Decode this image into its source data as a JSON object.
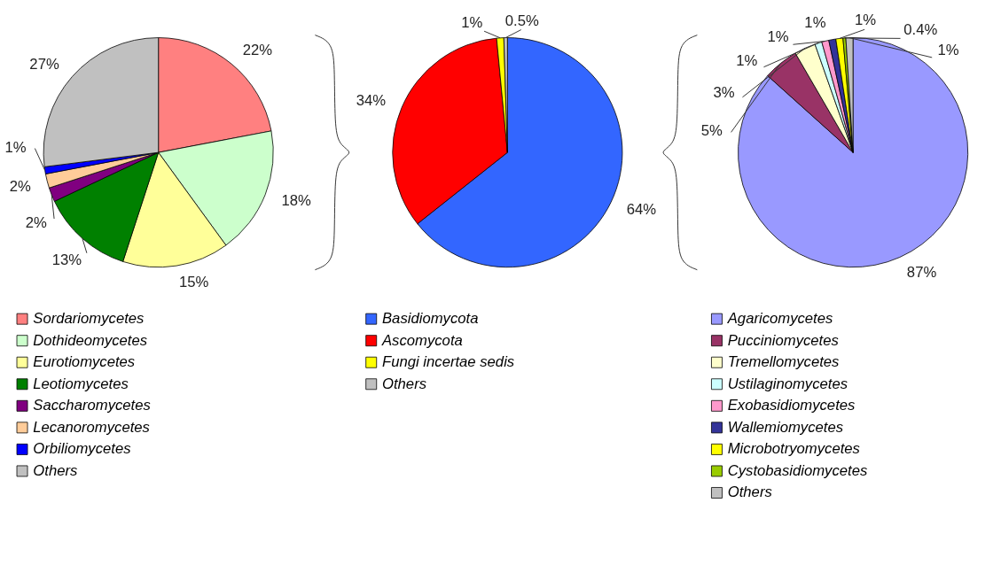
{
  "chart_data": [
    {
      "type": "pie",
      "categories": [
        "Sordariomycetes",
        "Dothideomycetes",
        "Eurotiomycetes",
        "Leotiomycetes",
        "Saccharomycetes",
        "Lecanoromycetes",
        "Orbiliomycetes",
        "Others"
      ],
      "values": [
        22,
        18,
        15,
        13,
        2,
        2,
        1,
        27
      ],
      "value_labels": [
        "22%",
        "18%",
        "15%",
        "13%",
        "2%",
        "2%",
        "1%",
        "27%"
      ],
      "colors": [
        "#ff8080",
        "#ccffcc",
        "#ffff99",
        "#008000",
        "#800080",
        "#ffcc99",
        "#0000ff",
        "#c0c0c0"
      ],
      "legend": "bottom"
    },
    {
      "type": "pie",
      "categories": [
        "Basidiomycota",
        "Ascomycota",
        "Fungi incertae sedis",
        "Others"
      ],
      "values": [
        64,
        34,
        1,
        0.5
      ],
      "value_labels": [
        "64%",
        "34%",
        "1%",
        "0.5%"
      ],
      "colors": [
        "#3366ff",
        "#ff0000",
        "#ffff00",
        "#c0c0c0"
      ],
      "legend": "bottom"
    },
    {
      "type": "pie",
      "categories": [
        "Agaricomycetes",
        "Pucciniomycetes",
        "Tremellomycetes",
        "Ustilaginomycetes",
        "Exobasidiomycetes",
        "Wallemiomycetes",
        "Microbotryomycetes",
        "Cystobasidiomycetes",
        "Others"
      ],
      "values": [
        87,
        5,
        3,
        1,
        1,
        1,
        1,
        0.4,
        1
      ],
      "value_labels": [
        "87%",
        "5%",
        "3%",
        "1%",
        "1%",
        "1%",
        "1%",
        "0.4%",
        "1%"
      ],
      "colors": [
        "#9999ff",
        "#993366",
        "#ffffcc",
        "#ccffff",
        "#ff99cc",
        "#333399",
        "#ffff00",
        "#99cc00",
        "#c0c0c0"
      ],
      "legend": "bottom"
    }
  ]
}
